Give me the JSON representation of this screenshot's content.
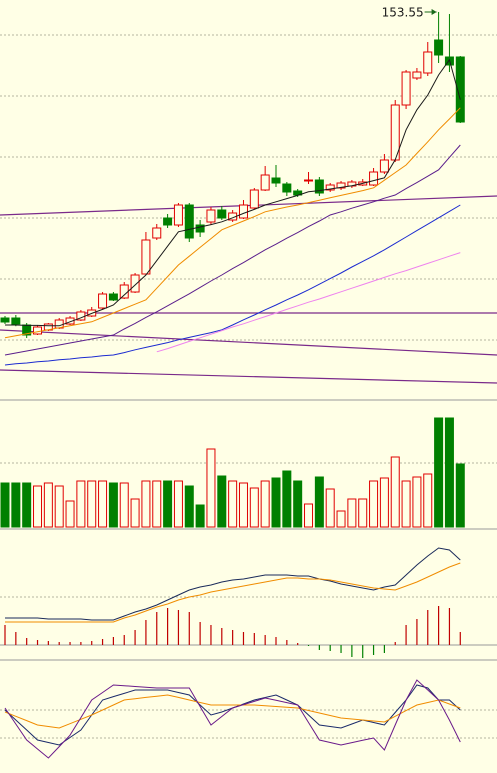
{
  "chart_data": [
    {
      "type": "candlestick",
      "open": [
        77.05,
        77.05,
        75.3,
        73.05,
        74.05,
        74.55,
        75.55,
        76.55,
        77.55,
        79.55,
        83.05,
        82.05,
        83.55,
        88.05,
        97.05,
        102.05,
        100.3,
        105.3,
        100.3,
        101.05,
        104.05,
        101.55,
        102.05,
        104.55,
        109.05,
        112.05,
        110.55,
        108.8,
        111.3,
        111.55,
        109.05,
        109.55,
        110.05,
        110.3,
        110.3,
        113.55,
        116.55,
        130.3,
        137.05,
        138.3,
        146.55,
        142.3,
        142.3
      ],
      "high": [
        77.55,
        77.8,
        75.8,
        75.3,
        75.8,
        77.05,
        77.55,
        79.05,
        79.8,
        83.55,
        83.55,
        86.05,
        88.3,
        98.55,
        100.55,
        103.05,
        105.8,
        105.8,
        101.55,
        104.8,
        105.05,
        104.05,
        106.55,
        109.55,
        115.05,
        115.3,
        111.05,
        109.3,
        113.55,
        112.3,
        110.8,
        111.3,
        111.55,
        111.8,
        114.55,
        118.05,
        131.55,
        139.05,
        139.55,
        146.05,
        153.55,
        153.05,
        142.55
      ],
      "low": [
        75.55,
        75.0,
        72.05,
        72.8,
        73.8,
        74.3,
        75.3,
        76.3,
        77.3,
        79.3,
        81.3,
        81.8,
        83.3,
        87.8,
        96.55,
        99.55,
        99.8,
        96.05,
        97.3,
        100.3,
        101.55,
        101.05,
        101.8,
        104.3,
        108.8,
        109.8,
        107.55,
        107.3,
        110.55,
        107.55,
        108.55,
        109.05,
        109.55,
        110.05,
        110.05,
        113.05,
        116.05,
        129.3,
        136.55,
        137.55,
        140.8,
        138.55,
        125.8
      ],
      "close": [
        76.05,
        75.55,
        72.8,
        74.8,
        75.55,
        76.55,
        77.05,
        78.55,
        79.05,
        83.05,
        81.55,
        85.3,
        87.8,
        96.55,
        99.55,
        100.3,
        105.3,
        97.05,
        98.55,
        104.05,
        102.05,
        103.3,
        105.3,
        109.05,
        112.8,
        110.8,
        108.55,
        107.8,
        111.55,
        108.3,
        110.3,
        110.8,
        111.05,
        111.05,
        113.55,
        116.55,
        130.3,
        138.55,
        138.55,
        143.55,
        142.8,
        140.3,
        126.05
      ],
      "ylim": [
        56.55,
        156.55
      ],
      "up_color": "#e00000",
      "down_color": "#008000",
      "overlays": [
        {
          "color": "#1a1a1a",
          "values": [
            75.3,
            75.3,
            75.2,
            75.2,
            75.1,
            75.1,
            76.1,
            77.1,
            78.2,
            79.2,
            80.3,
            82.8,
            85.3,
            87.8,
            91.4,
            95.0,
            98.6,
            99.2,
            99.8,
            100.4,
            101.1,
            102.1,
            103.2,
            104.2,
            105.3,
            106.1,
            106.9,
            107.7,
            108.6,
            108.9,
            109.3,
            109.7,
            110.1,
            110.7,
            111.4,
            112.1,
            116.6,
            124.1,
            129.1,
            132.8,
            137.8,
            141.6,
            131.6
          ]
        },
        {
          "color": "#f08c00",
          "values": [
            72.1,
            72.6,
            73.1,
            73.6,
            74.1,
            74.6,
            75.1,
            75.6,
            76.1,
            77.2,
            78.3,
            79.4,
            80.5,
            81.6,
            84.5,
            87.4,
            90.3,
            92.5,
            94.7,
            96.9,
            99.1,
            100.2,
            101.3,
            102.4,
            103.6,
            104.2,
            104.8,
            105.3,
            105.9,
            106.5,
            107.1,
            107.7,
            108.3,
            108.9,
            109.6,
            111.5,
            113.4,
            115.3,
            118.2,
            121.1,
            124.1,
            126.8,
            129.6
          ]
        },
        {
          "color": "#5a1e8c",
          "values": [
            67.8,
            68.3,
            68.8,
            69.3,
            69.8,
            70.3,
            70.8,
            71.3,
            71.8,
            72.3,
            72.8,
            74.3,
            75.7,
            77.2,
            78.6,
            80.1,
            81.6,
            83.1,
            84.7,
            86.3,
            87.8,
            89.4,
            90.9,
            92.5,
            94.1,
            95.5,
            97.0,
            98.4,
            99.9,
            101.3,
            102.8,
            103.6,
            104.5,
            105.3,
            106.1,
            107.0,
            107.8,
            109.4,
            110.9,
            112.5,
            114.1,
            117.2,
            120.3
          ]
        },
        {
          "color": "#1c2bd0",
          "values": [
            65.3,
            65.6,
            65.8,
            66.1,
            66.3,
            66.6,
            66.8,
            67.1,
            67.3,
            67.6,
            67.8,
            68.4,
            69.1,
            69.7,
            70.3,
            70.9,
            71.6,
            72.2,
            72.8,
            73.4,
            74.1,
            75.3,
            76.6,
            77.8,
            79.1,
            80.3,
            81.6,
            82.8,
            84.1,
            85.5,
            86.9,
            88.3,
            89.8,
            91.2,
            92.6,
            94.1,
            95.7,
            97.3,
            98.9,
            100.5,
            102.1,
            103.7,
            105.3
          ]
        },
        {
          "color": "#ee82ee",
          "values": [
            null,
            null,
            null,
            null,
            null,
            null,
            null,
            null,
            null,
            null,
            null,
            null,
            null,
            null,
            68.6,
            69.4,
            70.3,
            71.2,
            72.1,
            73.0,
            73.9,
            74.8,
            75.6,
            76.5,
            77.4,
            78.3,
            79.2,
            80.1,
            81.0,
            81.8,
            82.7,
            83.6,
            84.5,
            85.4,
            86.3,
            87.2,
            88.1,
            88.9,
            89.8,
            90.7,
            91.6,
            92.5,
            93.4
          ]
        }
      ],
      "annotation": "153.55"
    },
    {
      "type": "bar",
      "values": [
        44,
        44,
        44,
        41,
        44,
        41,
        26,
        46,
        46,
        46,
        44,
        44,
        28,
        46,
        46,
        46,
        46,
        41,
        22,
        78,
        51,
        46,
        44,
        39,
        46,
        49,
        56,
        46,
        23,
        50,
        38,
        16,
        28,
        28,
        46,
        49,
        70,
        46,
        50,
        53,
        109,
        109,
        63
      ],
      "ylim": [
        0,
        127
      ],
      "up_color": "#e00000",
      "down_color": "#008000"
    },
    {
      "type": "macd",
      "bars": [
        2.0,
        1.3,
        0.7,
        0.5,
        0.4,
        0.3,
        0.3,
        0.3,
        0.4,
        0.6,
        0.8,
        1.0,
        1.5,
        2.5,
        3.3,
        3.7,
        3.5,
        3.3,
        2.3,
        2.0,
        1.7,
        1.5,
        1.3,
        1.2,
        1.0,
        0.8,
        0.5,
        0.2,
        -0.1,
        -0.5,
        -0.6,
        -0.8,
        -1.2,
        -1.3,
        -1.0,
        -0.8,
        0.3,
        2.0,
        2.6,
        3.5,
        3.9,
        3.7,
        1.3
      ],
      "up_color": "#c00000",
      "down_color": "#008000",
      "series": [
        {
          "color": "#1a2a5a",
          "values": [
            2.7,
            2.7,
            2.7,
            2.7,
            2.6,
            2.6,
            2.6,
            2.6,
            2.5,
            2.5,
            2.5,
            2.9,
            3.3,
            3.6,
            4.0,
            4.5,
            5.0,
            5.5,
            5.8,
            6.0,
            6.3,
            6.5,
            6.6,
            6.8,
            7.0,
            7.0,
            7.0,
            6.9,
            6.9,
            6.6,
            6.4,
            6.1,
            5.9,
            5.7,
            5.5,
            5.8,
            6.0,
            7.0,
            8.0,
            8.9,
            9.7,
            9.5,
            8.5
          ]
        },
        {
          "color": "#f08c00",
          "values": [
            2.3,
            2.3,
            2.3,
            2.3,
            2.3,
            2.3,
            2.3,
            2.3,
            2.3,
            2.3,
            2.3,
            2.7,
            3.0,
            3.4,
            3.8,
            4.1,
            4.5,
            4.8,
            5.0,
            5.3,
            5.5,
            5.7,
            5.9,
            6.1,
            6.3,
            6.5,
            6.7,
            6.7,
            6.6,
            6.6,
            6.5,
            6.3,
            6.1,
            5.9,
            5.7,
            5.6,
            5.5,
            5.9,
            6.3,
            6.8,
            7.3,
            7.8,
            8.2
          ]
        }
      ],
      "ylim": [
        -1.5,
        11.5
      ]
    },
    {
      "type": "line",
      "series": [
        {
          "color": "#1a2a6a",
          "values": [
            62.5,
            50.0,
            37.5,
            25.0,
            21.9,
            18.8,
            28.1,
            37.5,
            56.3,
            75.0,
            79.2,
            83.3,
            87.5,
            87.5,
            87.5,
            87.5,
            84.4,
            81.3,
            68.8,
            56.3,
            60.0,
            65.0,
            70.0,
            75.0,
            78.1,
            81.3,
            75.0,
            68.8,
            56.3,
            43.8,
            41.9,
            40.0,
            45.0,
            50.0,
            46.9,
            43.8,
            59.4,
            75.0,
            93.8,
            90.0,
            75.0,
            75.0,
            62.5
          ]
        },
        {
          "color": "#f08c00",
          "values": [
            60,
            54.6,
            49.2,
            43.8,
            41.9,
            40,
            45.4,
            50.9,
            56.3,
            62.5,
            68.8,
            75,
            76.6,
            78.2,
            79.7,
            81.3,
            78.2,
            75,
            71.9,
            68.8,
            68.8,
            68.8,
            68.8,
            68.8,
            67.9,
            66.9,
            66,
            65,
            61.9,
            58.8,
            55.6,
            52.5,
            51.3,
            50,
            48.8,
            47.5,
            54.6,
            61.7,
            68.8,
            71.9,
            75,
            70,
            65
          ]
        },
        {
          "color": "#6a1a8a",
          "values": [
            65,
            45,
            25,
            13.8,
            2.5,
            16.8,
            31,
            53,
            75,
            84.4,
            93.8,
            92.9,
            91.9,
            91,
            90,
            90,
            90,
            90,
            66.9,
            43.8,
            54.4,
            65,
            69.2,
            73.3,
            77.5,
            74.6,
            71.7,
            68.8,
            46.9,
            25,
            21.9,
            18.8,
            21.7,
            24.6,
            27.5,
            12.5,
            43.8,
            75,
            100,
            87.5,
            75,
            50,
            22.5
          ]
        }
      ],
      "ylim": [
        -16.25,
        125
      ]
    }
  ]
}
